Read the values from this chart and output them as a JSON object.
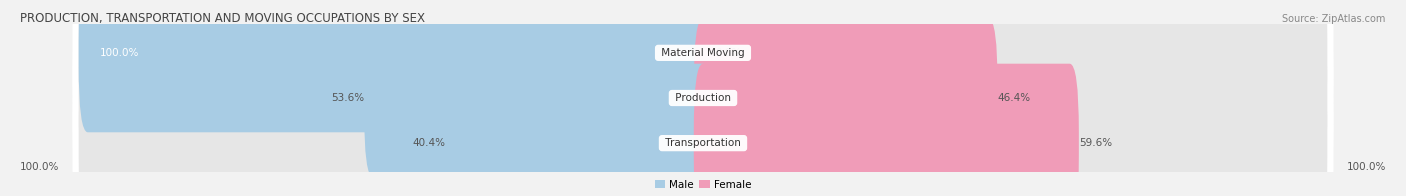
{
  "title": "PRODUCTION, TRANSPORTATION AND MOVING OCCUPATIONS BY SEX",
  "source": "Source: ZipAtlas.com",
  "categories": [
    "Material Moving",
    "Production",
    "Transportation"
  ],
  "male_values": [
    100.0,
    53.6,
    40.4
  ],
  "female_values": [
    0.0,
    46.4,
    59.6
  ],
  "male_color": "#a8cce4",
  "female_color": "#f09cb8",
  "bar_bg_color": "#e6e6e6",
  "row_bg_color": "#ebebeb",
  "male_label": "Male",
  "female_label": "Female",
  "title_fontsize": 8.5,
  "source_fontsize": 7,
  "label_fontsize": 7.5,
  "category_fontsize": 7.5,
  "legend_fontsize": 7.5,
  "text_color": "#555555",
  "background_color": "#f2f2f2"
}
